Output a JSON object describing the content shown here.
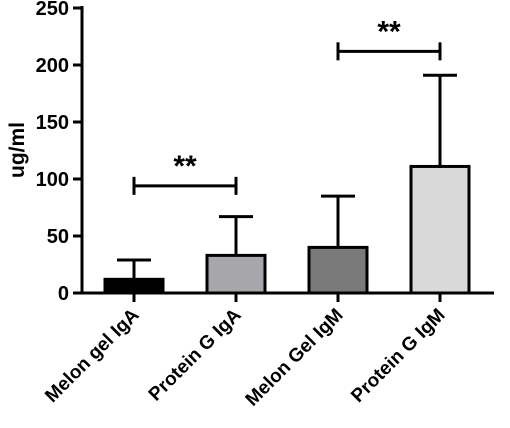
{
  "chart_data": {
    "type": "bar",
    "title": "",
    "xlabel": "",
    "ylabel": "ug/ml",
    "ylim": [
      0,
      250
    ],
    "yticks": [
      0,
      50,
      100,
      150,
      200,
      250
    ],
    "categories": [
      "Melon gel IgA",
      "Protein G IgA",
      "Melon Gel IgM",
      "Protein G IgM"
    ],
    "values": [
      12,
      33,
      40,
      111
    ],
    "error_upper": [
      29,
      67,
      85,
      191
    ],
    "colors": [
      "#000000",
      "#a6a6ab",
      "#7a7a7a",
      "#d9d9d9"
    ],
    "significance": [
      {
        "from": 0,
        "to": 1,
        "y": 94,
        "label": "**"
      },
      {
        "from": 2,
        "to": 3,
        "y": 212,
        "label": "**"
      }
    ],
    "grid": false,
    "legend": "none"
  }
}
